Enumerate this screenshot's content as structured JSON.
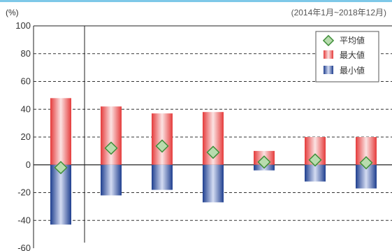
{
  "chart_data": {
    "type": "bar",
    "period": "(2014年1月~2018年12月)",
    "ylabel": "(%)",
    "ylim": [
      -60,
      100
    ],
    "yticks": [
      100,
      80,
      60,
      40,
      20,
      0,
      -20,
      -40,
      -60
    ],
    "categories": [
      "",
      "",
      "",
      "",
      "",
      "",
      ""
    ],
    "series": [
      {
        "name": "平均値",
        "values": [
          -2,
          12,
          13.5,
          9,
          2,
          3.5,
          1.5
        ]
      },
      {
        "name": "最大値",
        "values": [
          48,
          42,
          37,
          38,
          10,
          20,
          20
        ]
      },
      {
        "name": "最小値",
        "values": [
          -43,
          -22,
          -18,
          -27,
          -4,
          -12,
          -17
        ]
      }
    ],
    "legend_position": "top-right",
    "grid": true
  },
  "colors": {
    "max_edge": "#e53b3b",
    "max_center": "#fbe3e3",
    "min_edge": "#1f3f8f",
    "min_center": "#d4dcf2",
    "avg_fill": "#b8dcae",
    "avg_stroke": "#3f8f3a"
  }
}
